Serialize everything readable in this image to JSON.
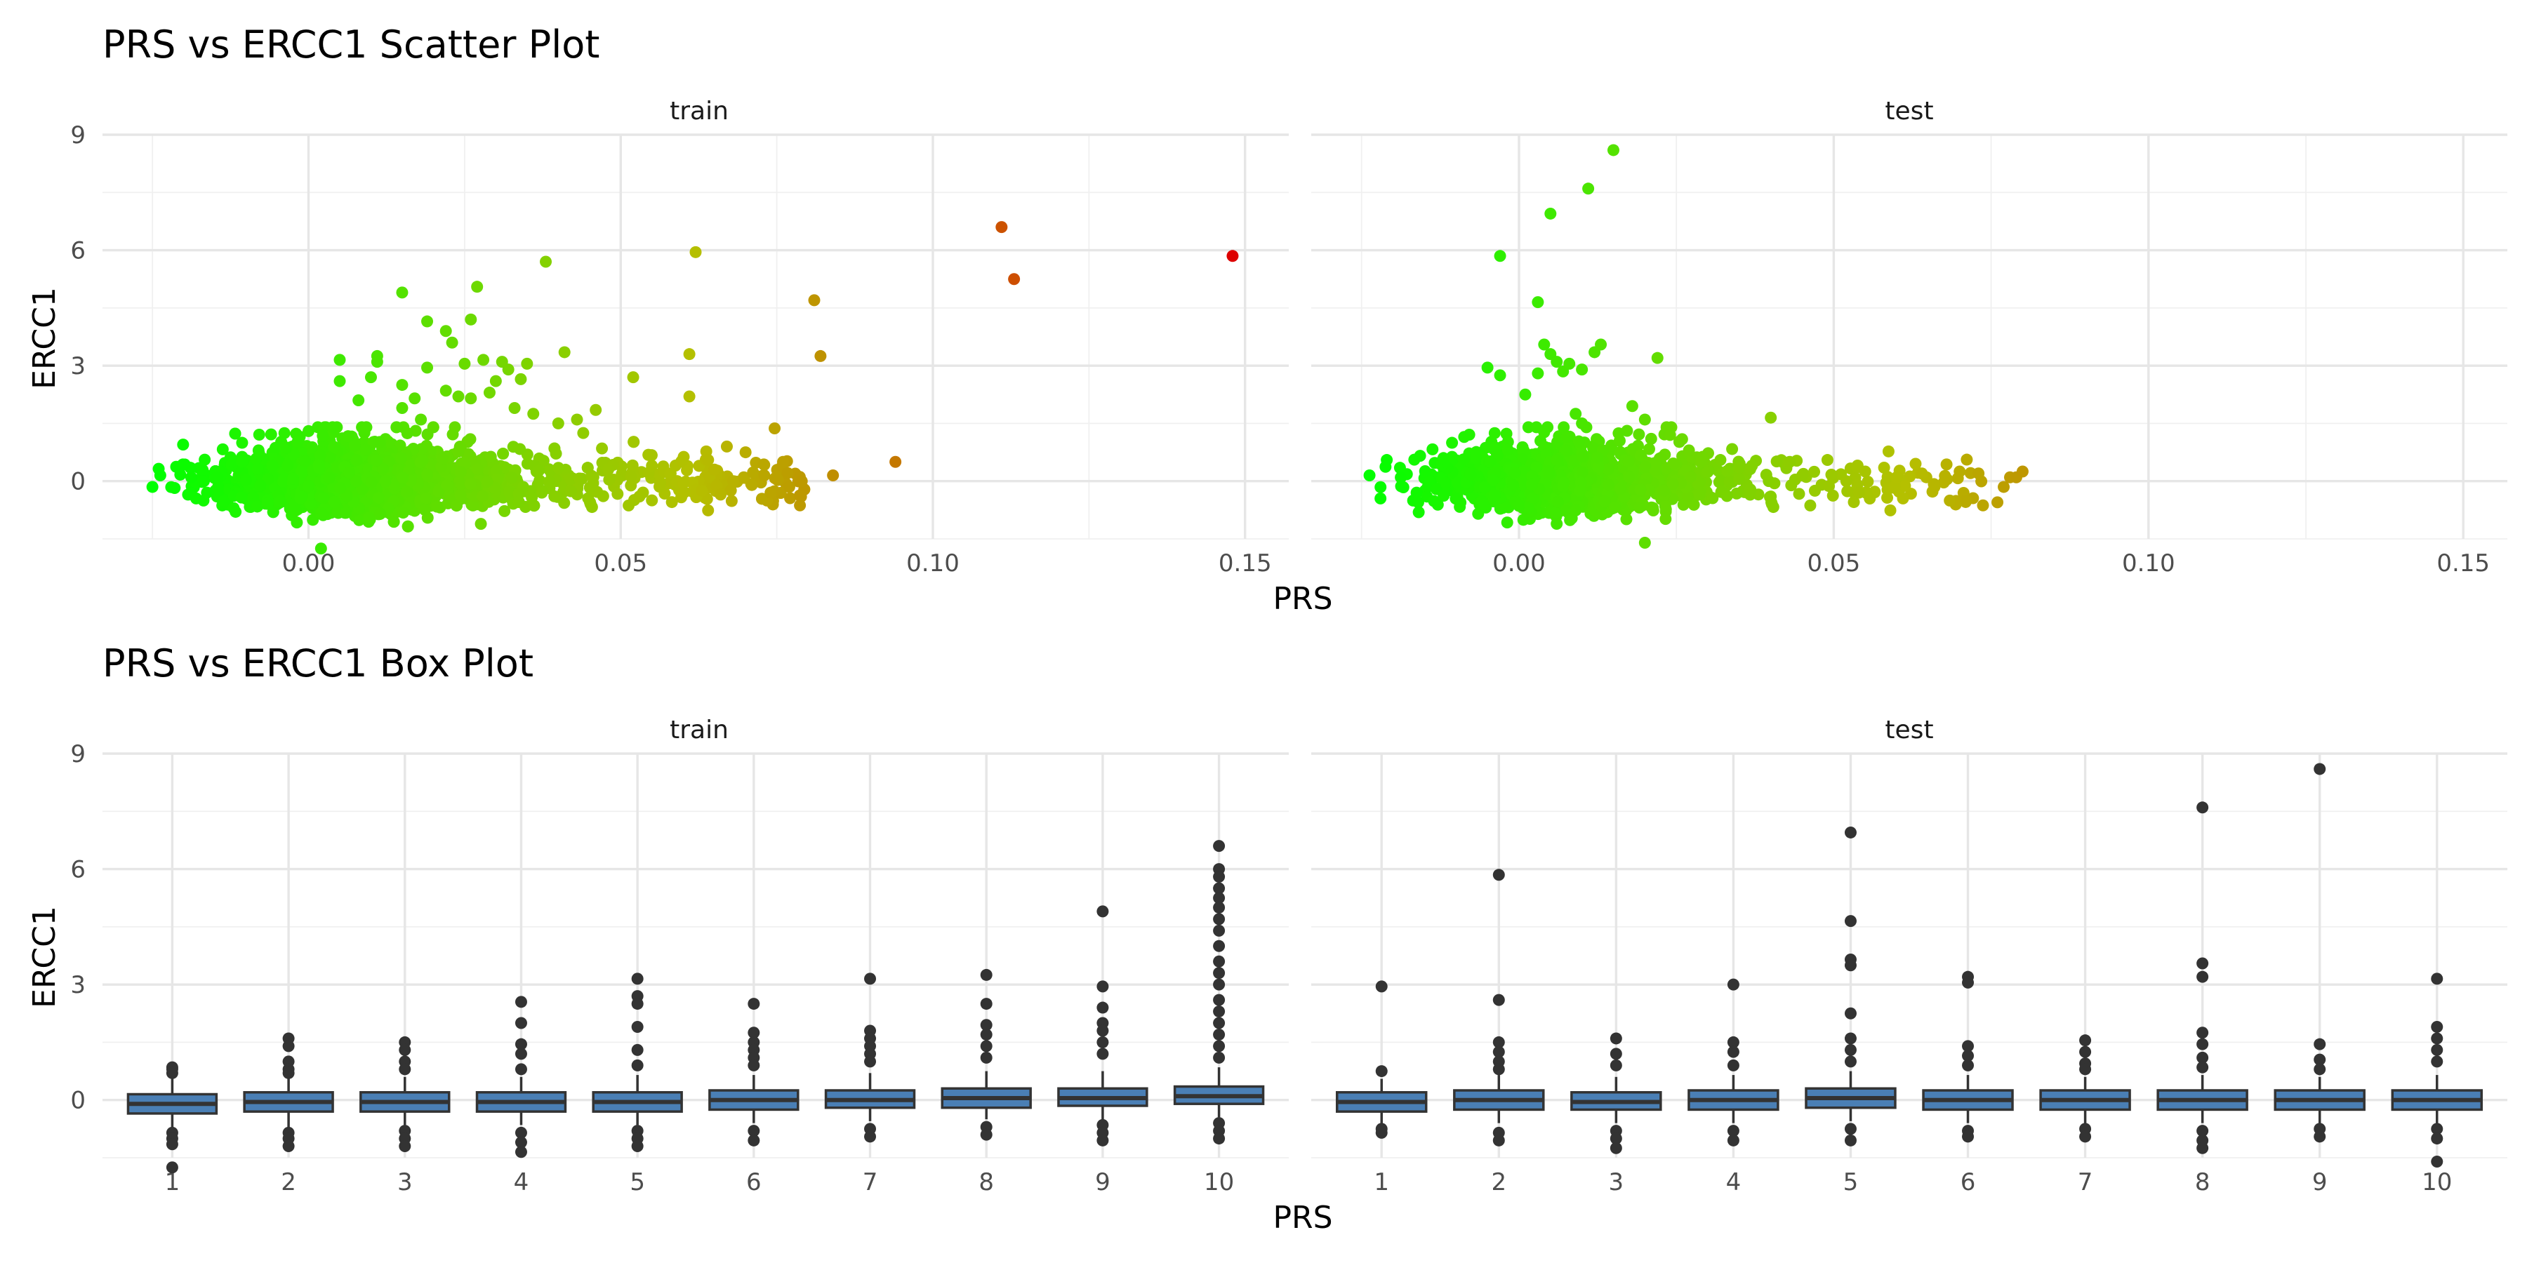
{
  "chart_data": [
    {
      "type": "scatter",
      "title": "PRS vs ERCC1 Scatter Plot",
      "xlabel": "PRS",
      "ylabel": "ERCC1",
      "xlim": [
        -0.033,
        0.157
      ],
      "ylim": [
        -1.5,
        9.0
      ],
      "x_ticks": [
        0.0,
        0.05,
        0.1,
        0.15
      ],
      "x_tick_labels": [
        "0.00",
        "0.05",
        "0.10",
        "0.15"
      ],
      "y_ticks": [
        0,
        3,
        6,
        9
      ],
      "y_tick_labels": [
        "0",
        "3",
        "6",
        "9"
      ],
      "grid": true,
      "legend": "none",
      "color_scale": {
        "low": "#00ff00",
        "high": "#dd0000",
        "mapped_to": "PRS"
      },
      "facets": [
        {
          "label": "train",
          "points": [
            [
              -0.025,
              -0.15
            ],
            [
              -0.024,
              0.32
            ],
            [
              -0.018,
              -0.45
            ],
            [
              -0.012,
              -0.7
            ],
            [
              -0.008,
              0.8
            ],
            [
              0.0,
              1.3
            ],
            [
              0.002,
              -1.75
            ],
            [
              0.005,
              2.6
            ],
            [
              0.005,
              3.15
            ],
            [
              0.008,
              2.1
            ],
            [
              0.01,
              2.7
            ],
            [
              0.011,
              3.1
            ],
            [
              0.011,
              3.25
            ],
            [
              0.015,
              2.5
            ],
            [
              0.017,
              2.15
            ],
            [
              0.019,
              2.95
            ],
            [
              0.015,
              1.9
            ],
            [
              0.018,
              1.6
            ],
            [
              0.022,
              2.35
            ],
            [
              0.024,
              2.2
            ],
            [
              0.015,
              4.9
            ],
            [
              0.019,
              4.15
            ],
            [
              0.022,
              3.9
            ],
            [
              0.023,
              3.6
            ],
            [
              0.026,
              4.2
            ],
            [
              0.027,
              5.05
            ],
            [
              0.025,
              3.05
            ],
            [
              0.028,
              3.15
            ],
            [
              0.026,
              2.15
            ],
            [
              0.029,
              2.3
            ],
            [
              0.03,
              2.6
            ],
            [
              0.032,
              2.9
            ],
            [
              0.034,
              2.65
            ],
            [
              0.031,
              3.1
            ],
            [
              0.035,
              3.05
            ],
            [
              0.038,
              5.7
            ],
            [
              0.041,
              3.35
            ],
            [
              0.033,
              1.9
            ],
            [
              0.036,
              1.75
            ],
            [
              0.04,
              1.5
            ],
            [
              0.043,
              1.6
            ],
            [
              0.046,
              1.85
            ],
            [
              0.044,
              1.25
            ],
            [
              0.047,
              0.85
            ],
            [
              0.048,
              0.3
            ],
            [
              0.052,
              2.7
            ],
            [
              0.055,
              0.4
            ],
            [
              0.058,
              0.2
            ],
            [
              0.053,
              -0.4
            ],
            [
              0.055,
              -0.5
            ],
            [
              0.06,
              -0.05
            ],
            [
              0.061,
              3.3
            ],
            [
              0.061,
              2.2
            ],
            [
              0.062,
              5.95
            ],
            [
              0.064,
              0.55
            ],
            [
              0.065,
              0.3
            ],
            [
              0.063,
              -0.25
            ],
            [
              0.066,
              -0.35
            ],
            [
              0.068,
              0.0
            ],
            [
              0.067,
              0.9
            ],
            [
              0.07,
              0.75
            ],
            [
              0.071,
              -0.1
            ],
            [
              0.073,
              0.15
            ],
            [
              0.074,
              -0.3
            ],
            [
              0.076,
              0.5
            ],
            [
              0.077,
              -0.15
            ],
            [
              0.079,
              0.0
            ],
            [
              0.081,
              4.7
            ],
            [
              0.082,
              3.25
            ],
            [
              0.084,
              0.15
            ],
            [
              0.094,
              0.5
            ],
            [
              0.111,
              6.6
            ],
            [
              0.113,
              5.25
            ],
            [
              0.148,
              5.85
            ]
          ]
        },
        {
          "label": "test",
          "points": [
            [
              -0.021,
              0.55
            ],
            [
              -0.022,
              -0.45
            ],
            [
              -0.016,
              -0.55
            ],
            [
              -0.012,
              0.6
            ],
            [
              -0.005,
              2.95
            ],
            [
              -0.003,
              2.75
            ],
            [
              -0.003,
              5.85
            ],
            [
              0.001,
              2.25
            ],
            [
              0.003,
              2.8
            ],
            [
              0.003,
              4.65
            ],
            [
              0.004,
              3.55
            ],
            [
              0.005,
              6.95
            ],
            [
              0.005,
              3.3
            ],
            [
              0.006,
              3.1
            ],
            [
              0.007,
              2.85
            ],
            [
              0.008,
              3.05
            ],
            [
              0.009,
              1.75
            ],
            [
              0.01,
              2.9
            ],
            [
              0.01,
              1.5
            ],
            [
              0.011,
              7.6
            ],
            [
              0.012,
              3.35
            ],
            [
              0.013,
              3.55
            ],
            [
              0.015,
              8.6
            ],
            [
              0.016,
              1.05
            ],
            [
              0.018,
              1.95
            ],
            [
              0.02,
              1.6
            ],
            [
              0.02,
              -1.6
            ],
            [
              0.021,
              1.1
            ],
            [
              0.022,
              3.2
            ],
            [
              0.024,
              1.2
            ],
            [
              0.027,
              0.8
            ],
            [
              0.032,
              0.55
            ],
            [
              0.037,
              0.4
            ],
            [
              0.04,
              1.65
            ],
            [
              0.04,
              -0.4
            ],
            [
              0.043,
              0.5
            ],
            [
              0.045,
              0.15
            ],
            [
              0.047,
              -0.25
            ],
            [
              0.049,
              0.55
            ],
            [
              0.052,
              0.0
            ],
            [
              0.054,
              -0.3
            ],
            [
              0.055,
              0.25
            ],
            [
              0.058,
              0.35
            ],
            [
              0.06,
              0.1
            ],
            [
              0.061,
              -0.45
            ],
            [
              0.063,
              0.45
            ],
            [
              0.064,
              0.2
            ],
            [
              0.066,
              -0.15
            ],
            [
              0.068,
              0.05
            ],
            [
              0.07,
              0.25
            ],
            [
              0.071,
              -0.5
            ],
            [
              0.073,
              0.2
            ],
            [
              0.076,
              -0.55
            ],
            [
              0.077,
              -0.15
            ],
            [
              0.078,
              0.1
            ],
            [
              0.079,
              0.1
            ],
            [
              0.08,
              0.25
            ]
          ]
        }
      ]
    },
    {
      "type": "box",
      "title": "PRS vs ERCC1 Box Plot",
      "xlabel": "PRS",
      "ylabel": "ERCC1",
      "categories": [
        "1",
        "2",
        "3",
        "4",
        "5",
        "6",
        "7",
        "8",
        "9",
        "10"
      ],
      "ylim": [
        -1.5,
        9.0
      ],
      "y_ticks": [
        0,
        3,
        6,
        9
      ],
      "y_tick_labels": [
        "0",
        "3",
        "6",
        "9"
      ],
      "grid": true,
      "box_fill": "#4a7fb5",
      "facets": [
        {
          "label": "train",
          "boxes": [
            {
              "q1": -0.35,
              "median": -0.1,
              "q3": 0.15,
              "whisker_low": -0.75,
              "whisker_high": 0.6,
              "outliers": [
                0.85,
                0.8,
                0.7,
                -0.85,
                -1.0,
                -1.15,
                -1.75
              ]
            },
            {
              "q1": -0.3,
              "median": -0.05,
              "q3": 0.2,
              "whisker_low": -0.7,
              "whisker_high": 0.6,
              "outliers": [
                1.6,
                1.4,
                1.0,
                0.8,
                0.7,
                -0.85,
                -1.0,
                -1.2
              ]
            },
            {
              "q1": -0.3,
              "median": -0.05,
              "q3": 0.2,
              "whisker_low": -0.65,
              "whisker_high": 0.6,
              "outliers": [
                1.5,
                1.3,
                1.0,
                0.8,
                -0.8,
                -1.0,
                -1.2
              ]
            },
            {
              "q1": -0.3,
              "median": -0.05,
              "q3": 0.2,
              "whisker_low": -0.65,
              "whisker_high": 0.6,
              "outliers": [
                2.55,
                2.0,
                1.45,
                1.2,
                0.8,
                -0.85,
                -1.1,
                -1.35
              ]
            },
            {
              "q1": -0.3,
              "median": -0.05,
              "q3": 0.2,
              "whisker_low": -0.65,
              "whisker_high": 0.65,
              "outliers": [
                3.15,
                2.7,
                2.5,
                1.9,
                1.3,
                0.9,
                -0.8,
                -1.0,
                -1.2
              ]
            },
            {
              "q1": -0.25,
              "median": 0.0,
              "q3": 0.25,
              "whisker_low": -0.6,
              "whisker_high": 0.65,
              "outliers": [
                2.5,
                1.75,
                1.5,
                1.3,
                1.1,
                0.9,
                -0.8,
                -1.05
              ]
            },
            {
              "q1": -0.2,
              "median": 0.0,
              "q3": 0.25,
              "whisker_low": -0.55,
              "whisker_high": 0.7,
              "outliers": [
                3.15,
                1.8,
                1.6,
                1.4,
                1.2,
                1.0,
                -0.75,
                -0.95
              ]
            },
            {
              "q1": -0.2,
              "median": 0.05,
              "q3": 0.3,
              "whisker_low": -0.5,
              "whisker_high": 0.75,
              "outliers": [
                3.25,
                2.5,
                1.95,
                1.7,
                1.4,
                1.1,
                -0.7,
                -0.9
              ]
            },
            {
              "q1": -0.15,
              "median": 0.05,
              "q3": 0.3,
              "whisker_low": -0.5,
              "whisker_high": 0.75,
              "outliers": [
                4.9,
                2.95,
                2.4,
                2.0,
                1.8,
                1.5,
                1.2,
                -0.65,
                -0.85,
                -1.05
              ]
            },
            {
              "q1": -0.1,
              "median": 0.1,
              "q3": 0.35,
              "whisker_low": -0.45,
              "whisker_high": 0.85,
              "outliers": [
                6.6,
                6.0,
                5.8,
                5.5,
                5.25,
                5.0,
                4.7,
                4.4,
                4.0,
                3.6,
                3.3,
                3.0,
                2.6,
                2.3,
                2.0,
                1.7,
                1.4,
                1.1,
                -0.6,
                -0.8,
                -1.0
              ]
            }
          ]
        },
        {
          "label": "test",
          "boxes": [
            {
              "q1": -0.3,
              "median": -0.05,
              "q3": 0.2,
              "whisker_low": -0.6,
              "whisker_high": 0.55,
              "outliers": [
                2.95,
                0.75,
                -0.75,
                -0.85
              ]
            },
            {
              "q1": -0.25,
              "median": 0.0,
              "q3": 0.25,
              "whisker_low": -0.6,
              "whisker_high": 0.65,
              "outliers": [
                5.85,
                2.6,
                1.5,
                1.25,
                1.0,
                0.8,
                -0.85,
                -1.05
              ]
            },
            {
              "q1": -0.25,
              "median": -0.05,
              "q3": 0.2,
              "whisker_low": -0.6,
              "whisker_high": 0.6,
              "outliers": [
                1.6,
                1.2,
                0.9,
                -0.8,
                -1.0,
                -1.25
              ]
            },
            {
              "q1": -0.25,
              "median": 0.0,
              "q3": 0.25,
              "whisker_low": -0.6,
              "whisker_high": 0.65,
              "outliers": [
                3.0,
                1.5,
                1.25,
                0.9,
                -0.8,
                -1.05
              ]
            },
            {
              "q1": -0.2,
              "median": 0.05,
              "q3": 0.3,
              "whisker_low": -0.55,
              "whisker_high": 0.75,
              "outliers": [
                6.95,
                4.65,
                3.65,
                3.5,
                2.25,
                1.6,
                1.3,
                1.0,
                -0.75,
                -1.05
              ]
            },
            {
              "q1": -0.25,
              "median": 0.0,
              "q3": 0.25,
              "whisker_low": -0.6,
              "whisker_high": 0.65,
              "outliers": [
                3.2,
                3.05,
                1.4,
                1.15,
                0.9,
                -0.8,
                -0.95
              ]
            },
            {
              "q1": -0.25,
              "median": 0.0,
              "q3": 0.25,
              "whisker_low": -0.6,
              "whisker_high": 0.6,
              "outliers": [
                1.55,
                1.25,
                0.95,
                0.8,
                -0.75,
                -0.95
              ]
            },
            {
              "q1": -0.25,
              "median": 0.0,
              "q3": 0.25,
              "whisker_low": -0.6,
              "whisker_high": 0.65,
              "outliers": [
                7.6,
                3.55,
                3.2,
                1.75,
                1.45,
                1.1,
                0.85,
                -0.8,
                -1.05,
                -1.25
              ]
            },
            {
              "q1": -0.25,
              "median": 0.0,
              "q3": 0.25,
              "whisker_low": -0.6,
              "whisker_high": 0.6,
              "outliers": [
                8.6,
                1.45,
                1.05,
                0.8,
                -0.75,
                -0.95
              ]
            },
            {
              "q1": -0.25,
              "median": 0.0,
              "q3": 0.25,
              "whisker_low": -0.6,
              "whisker_high": 0.65,
              "outliers": [
                3.15,
                1.9,
                1.6,
                1.3,
                1.0,
                -0.75,
                -1.0,
                -1.6
              ]
            }
          ]
        }
      ]
    }
  ]
}
